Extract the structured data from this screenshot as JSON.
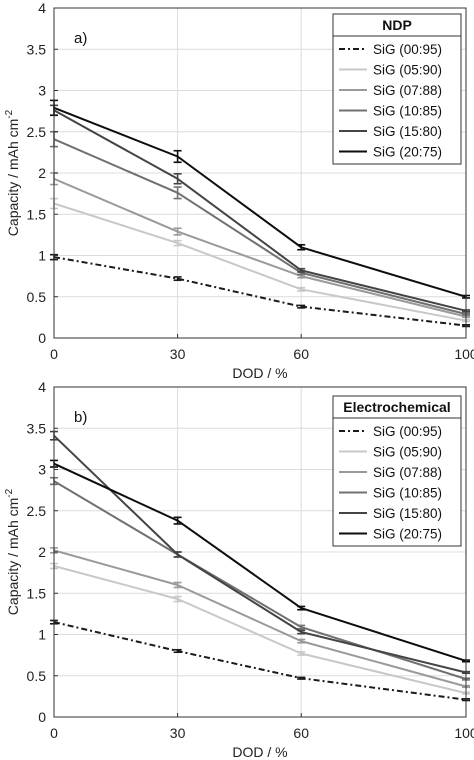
{
  "chart_data": [
    {
      "type": "line",
      "panel_label": "a)",
      "legend_title": "NDP",
      "xlabel": "DOD / %",
      "ylabel_main": "Capacity / mAh cm",
      "ylabel_sup": "-2",
      "x": [
        0,
        30,
        60,
        100
      ],
      "x_tick_labels": [
        "0",
        "30",
        "60",
        "100"
      ],
      "ylim": [
        0,
        4
      ],
      "y_tick_labels": [
        "0",
        "0.5",
        "1",
        "1.5",
        "2",
        "2.5",
        "3",
        "3.5",
        "4"
      ],
      "grid": true,
      "legend_position": "top-right",
      "series": [
        {
          "name": "SiG (00:95)",
          "values": [
            0.98,
            0.72,
            0.38,
            0.15
          ],
          "errors": [
            0.03,
            0.02,
            0.015,
            0.01
          ],
          "color": "#1a1a1a",
          "dash": "6,3,2,3"
        },
        {
          "name": "SiG (05:90)",
          "values": [
            1.63,
            1.15,
            0.59,
            0.21
          ],
          "errors": [
            0.06,
            0.03,
            0.02,
            0.01
          ],
          "color": "#c8c8c8",
          "dash": ""
        },
        {
          "name": "SiG (07:88)",
          "values": [
            1.93,
            1.29,
            0.75,
            0.26
          ],
          "errors": [
            0.07,
            0.04,
            0.02,
            0.01
          ],
          "color": "#9a9a9a",
          "dash": ""
        },
        {
          "name": "SiG (10:85)",
          "values": [
            2.41,
            1.76,
            0.79,
            0.29
          ],
          "errors": [
            0.09,
            0.07,
            0.02,
            0.01
          ],
          "color": "#707070",
          "dash": ""
        },
        {
          "name": "SiG (15:80)",
          "values": [
            2.76,
            1.93,
            0.82,
            0.33
          ],
          "errors": [
            0.06,
            0.06,
            0.02,
            0.01
          ],
          "color": "#444444",
          "dash": ""
        },
        {
          "name": "SiG (20:75)",
          "values": [
            2.79,
            2.2,
            1.1,
            0.5
          ],
          "errors": [
            0.09,
            0.07,
            0.03,
            0.015
          ],
          "color": "#0d0d0d",
          "dash": ""
        }
      ]
    },
    {
      "type": "line",
      "panel_label": "b)",
      "legend_title": "Electrochemical",
      "xlabel": "DOD / %",
      "ylabel_main": "Capacity / mAh cm",
      "ylabel_sup": "-2",
      "x": [
        0,
        30,
        60,
        100
      ],
      "x_tick_labels": [
        "0",
        "30",
        "60",
        "100"
      ],
      "ylim": [
        0,
        4
      ],
      "y_tick_labels": [
        "0",
        "0.5",
        "1",
        "1.5",
        "2",
        "2.5",
        "3",
        "3.5",
        "4"
      ],
      "grid": true,
      "legend_position": "top-right",
      "series": [
        {
          "name": "SiG (00:95)",
          "values": [
            1.15,
            0.8,
            0.47,
            0.21
          ],
          "errors": [
            0.02,
            0.015,
            0.01,
            0.01
          ],
          "color": "#1a1a1a",
          "dash": "6,3,2,3"
        },
        {
          "name": "SiG (05:90)",
          "values": [
            1.83,
            1.43,
            0.77,
            0.29
          ],
          "errors": [
            0.03,
            0.03,
            0.02,
            0.01
          ],
          "color": "#c8c8c8",
          "dash": ""
        },
        {
          "name": "SiG (07:88)",
          "values": [
            2.02,
            1.6,
            0.92,
            0.37
          ],
          "errors": [
            0.03,
            0.03,
            0.02,
            0.01
          ],
          "color": "#9a9a9a",
          "dash": ""
        },
        {
          "name": "SiG (10:85)",
          "values": [
            2.86,
            1.97,
            1.09,
            0.46
          ],
          "errors": [
            0.04,
            0.03,
            0.02,
            0.01
          ],
          "color": "#707070",
          "dash": ""
        },
        {
          "name": "SiG (15:80)",
          "values": [
            3.41,
            1.97,
            1.03,
            0.54
          ],
          "errors": [
            0.05,
            0.03,
            0.02,
            0.01
          ],
          "color": "#444444",
          "dash": ""
        },
        {
          "name": "SiG (20:75)",
          "values": [
            3.07,
            2.38,
            1.32,
            0.68
          ],
          "errors": [
            0.04,
            0.04,
            0.02,
            0.01
          ],
          "color": "#0d0d0d",
          "dash": ""
        }
      ]
    }
  ]
}
